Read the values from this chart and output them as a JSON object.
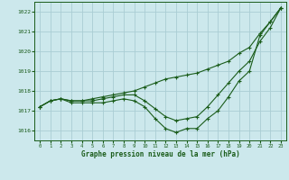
{
  "background_color": "#cce8ec",
  "grid_color": "#aacdd4",
  "line_color": "#1a5c1a",
  "text_color": "#1a5c1a",
  "xlabel": "Graphe pression niveau de la mer (hPa)",
  "xlim": [
    -0.5,
    23.5
  ],
  "ylim": [
    1015.5,
    1022.5
  ],
  "yticks": [
    1016,
    1017,
    1018,
    1019,
    1020,
    1021,
    1022
  ],
  "xticks": [
    0,
    1,
    2,
    3,
    4,
    5,
    6,
    7,
    8,
    9,
    10,
    11,
    12,
    13,
    14,
    15,
    16,
    17,
    18,
    19,
    20,
    21,
    22,
    23
  ],
  "series": [
    [
      1017.2,
      1017.5,
      1017.6,
      1017.4,
      1017.4,
      1017.4,
      1017.4,
      1017.5,
      1017.6,
      1017.5,
      1017.2,
      1016.6,
      1016.1,
      1015.9,
      1016.1,
      1016.1,
      1016.6,
      1017.0,
      1017.7,
      1018.5,
      1019.0,
      1020.8,
      1021.5,
      1022.2
    ],
    [
      1017.2,
      1017.5,
      1017.6,
      1017.5,
      1017.5,
      1017.5,
      1017.6,
      1017.7,
      1017.8,
      1017.8,
      1017.5,
      1017.1,
      1016.7,
      1016.5,
      1016.6,
      1016.7,
      1017.2,
      1017.8,
      1018.4,
      1019.0,
      1019.5,
      1020.5,
      1021.2,
      1022.2
    ],
    [
      1017.2,
      1017.5,
      1017.6,
      1017.5,
      1017.5,
      1017.6,
      1017.7,
      1017.8,
      1017.9,
      1018.0,
      1018.2,
      1018.4,
      1018.6,
      1018.7,
      1018.8,
      1018.9,
      1019.1,
      1019.3,
      1019.5,
      1019.9,
      1020.2,
      1020.9,
      1021.5,
      1022.2
    ]
  ]
}
